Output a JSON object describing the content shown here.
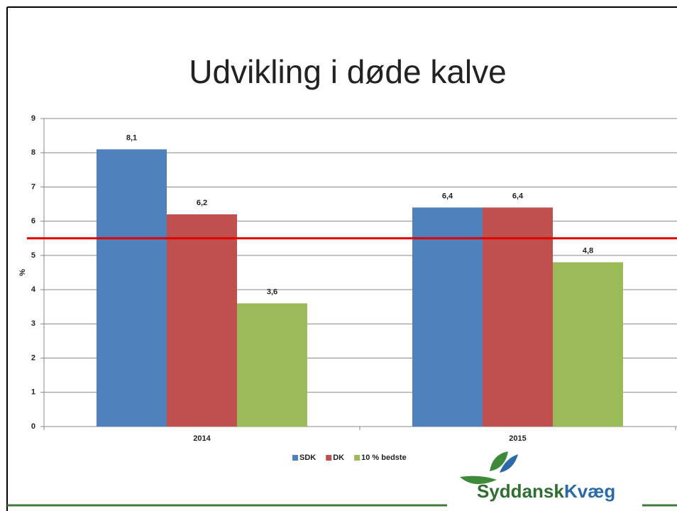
{
  "chart_data": {
    "type": "bar",
    "title": "Udvikling i døde kalve",
    "y_label": "%",
    "categories": [
      "2014",
      "2015"
    ],
    "series": [
      {
        "name": "SDK",
        "color": "#4f81bd",
        "values": [
          8.1,
          6.4
        ],
        "value_labels": [
          "8,1",
          "6,4"
        ]
      },
      {
        "name": "DK",
        "color": "#c0504d",
        "values": [
          6.2,
          6.4
        ],
        "value_labels": [
          "6,2",
          "6,4"
        ]
      },
      {
        "name": "10 % bedste",
        "color": "#9bbb59",
        "values": [
          3.6,
          4.8
        ],
        "value_labels": [
          "3,6",
          "4,8"
        ]
      }
    ],
    "ylim": [
      0,
      9
    ],
    "yticks": [
      0,
      1,
      2,
      3,
      4,
      5,
      6,
      7,
      8,
      9
    ],
    "grid": true,
    "reference_line": {
      "value": 5.5,
      "color": "#e00000"
    },
    "legend": "bottom"
  },
  "logo": {
    "first": "Syddansk",
    "second": "Kvæg"
  }
}
